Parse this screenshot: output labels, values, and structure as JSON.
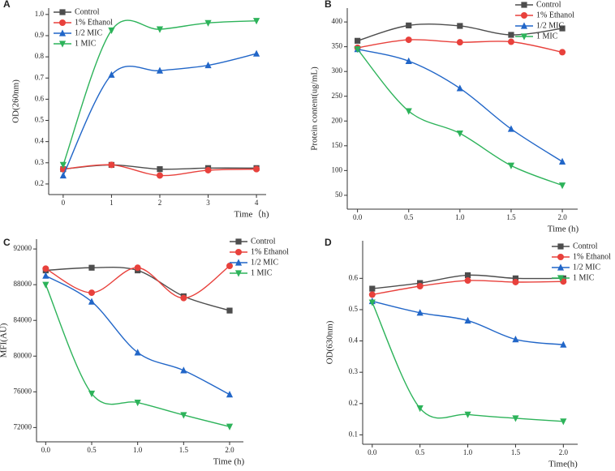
{
  "chart_data": [
    {
      "type": "line",
      "label": "A",
      "xlabel": "Time（h)",
      "ylabel": "OD(260nm)",
      "x": [
        0,
        1,
        2,
        3,
        4
      ],
      "xlim": [
        -0.3,
        4.2
      ],
      "xticks": [
        0,
        1,
        2,
        3,
        4
      ],
      "ylim": [
        0.15,
        1.03
      ],
      "yticks": [
        0.2,
        0.3,
        0.4,
        0.5,
        0.6,
        0.7,
        0.8,
        0.9,
        {
          "value": 1,
          "label": "1.0"
        }
      ],
      "legend": "upper left",
      "series": [
        {
          "name": "Control",
          "color": "#4d4d4d",
          "marker": "square",
          "values": [
            0.27,
            0.29,
            0.27,
            0.275,
            0.275
          ]
        },
        {
          "name": "1% Ethanol",
          "color": "#e8413c",
          "marker": "circle",
          "values": [
            0.27,
            0.29,
            0.24,
            0.265,
            0.27
          ]
        },
        {
          "name": "1/2 MIC",
          "color": "#2166c8",
          "marker": "triangle-up",
          "values": [
            0.24,
            0.715,
            0.735,
            0.76,
            0.815
          ]
        },
        {
          "name": "1 MIC",
          "color": "#2db35a",
          "marker": "triangle-down",
          "values": [
            0.29,
            0.925,
            0.93,
            0.96,
            0.97
          ]
        }
      ]
    },
    {
      "type": "line",
      "label": "B",
      "xlabel": "Time (h)",
      "ylabel": "Protein content(ug/mL)",
      "x": [
        0,
        0.5,
        1,
        1.5,
        2
      ],
      "xlim": [
        -0.1,
        2.15
      ],
      "xticks": [
        {
          "value": 0,
          "label": "0.0"
        },
        0.5,
        {
          "value": 1,
          "label": "1.0"
        },
        1.5,
        {
          "value": 2,
          "label": "2.0"
        }
      ],
      "ylim": [
        22,
        428
      ],
      "yticks": [
        50,
        100,
        150,
        200,
        250,
        300,
        350,
        400
      ],
      "legend": "upper right",
      "series": [
        {
          "name": "Control",
          "color": "#4d4d4d",
          "marker": "square",
          "values": [
            362,
            393,
            392,
            374,
            387
          ]
        },
        {
          "name": "1% Ethanol",
          "color": "#e8413c",
          "marker": "circle",
          "values": [
            348,
            364,
            359,
            360,
            339
          ]
        },
        {
          "name": "1/2 MIC",
          "color": "#2166c8",
          "marker": "triangle-up",
          "values": [
            345,
            321,
            266,
            184,
            118
          ]
        },
        {
          "name": "1 MIC",
          "color": "#2db35a",
          "marker": "triangle-down",
          "values": [
            345,
            220,
            175,
            110,
            70
          ]
        }
      ]
    },
    {
      "type": "line",
      "label": "C",
      "xlabel": "Time (h)",
      "ylabel": "MFI(AU)",
      "x": [
        0,
        0.5,
        1,
        1.5,
        2
      ],
      "xlim": [
        -0.1,
        2.15
      ],
      "xticks": [
        {
          "value": 0,
          "label": "0.0"
        },
        0.5,
        {
          "value": 1,
          "label": "1.0"
        },
        1.5,
        {
          "value": 2,
          "label": "2.0"
        }
      ],
      "ylim": [
        70400,
        93100
      ],
      "yticks": [
        72000,
        76000,
        80000,
        84000,
        88000,
        92000
      ],
      "legend": "upper right",
      "series": [
        {
          "name": "Control",
          "color": "#4d4d4d",
          "marker": "square",
          "values": [
            89600,
            89900,
            89600,
            86700,
            85100
          ]
        },
        {
          "name": "1% Ethanol",
          "color": "#e8413c",
          "marker": "circle",
          "values": [
            89800,
            87100,
            89900,
            86500,
            90100
          ]
        },
        {
          "name": "1/2 MIC",
          "color": "#2166c8",
          "marker": "triangle-up",
          "values": [
            89000,
            86100,
            80400,
            78400,
            75700
          ]
        },
        {
          "name": "1 MIC",
          "color": "#2db35a",
          "marker": "triangle-down",
          "values": [
            88000,
            75800,
            74800,
            73400,
            72100
          ]
        }
      ]
    },
    {
      "type": "line",
      "label": "D",
      "xlabel": "Time(h)",
      "ylabel": "OD(630nm)",
      "x": [
        0,
        0.5,
        1,
        1.5,
        2
      ],
      "xlim": [
        -0.1,
        2.15
      ],
      "xticks": [
        {
          "value": 0,
          "label": "0.0"
        },
        0.5,
        {
          "value": 1,
          "label": "1.0"
        },
        1.5,
        {
          "value": 2,
          "label": "2.0"
        }
      ],
      "ylim": [
        0.07,
        0.72
      ],
      "yticks": [
        0.1,
        0.2,
        0.3,
        0.4,
        0.5,
        0.6
      ],
      "legend": "upper right",
      "series": [
        {
          "name": "Control",
          "color": "#4d4d4d",
          "marker": "square",
          "values": [
            0.567,
            0.585,
            0.61,
            0.6,
            0.6
          ]
        },
        {
          "name": "1% Ethanol",
          "color": "#e8413c",
          "marker": "circle",
          "values": [
            0.548,
            0.575,
            0.593,
            0.588,
            0.59
          ]
        },
        {
          "name": "1/2 MIC",
          "color": "#2166c8",
          "marker": "triangle-up",
          "values": [
            0.527,
            0.49,
            0.465,
            0.405,
            0.388
          ]
        },
        {
          "name": "1 MIC",
          "color": "#2db35a",
          "marker": "triangle-down",
          "values": [
            0.523,
            0.185,
            0.165,
            0.153,
            0.143
          ]
        }
      ]
    }
  ]
}
